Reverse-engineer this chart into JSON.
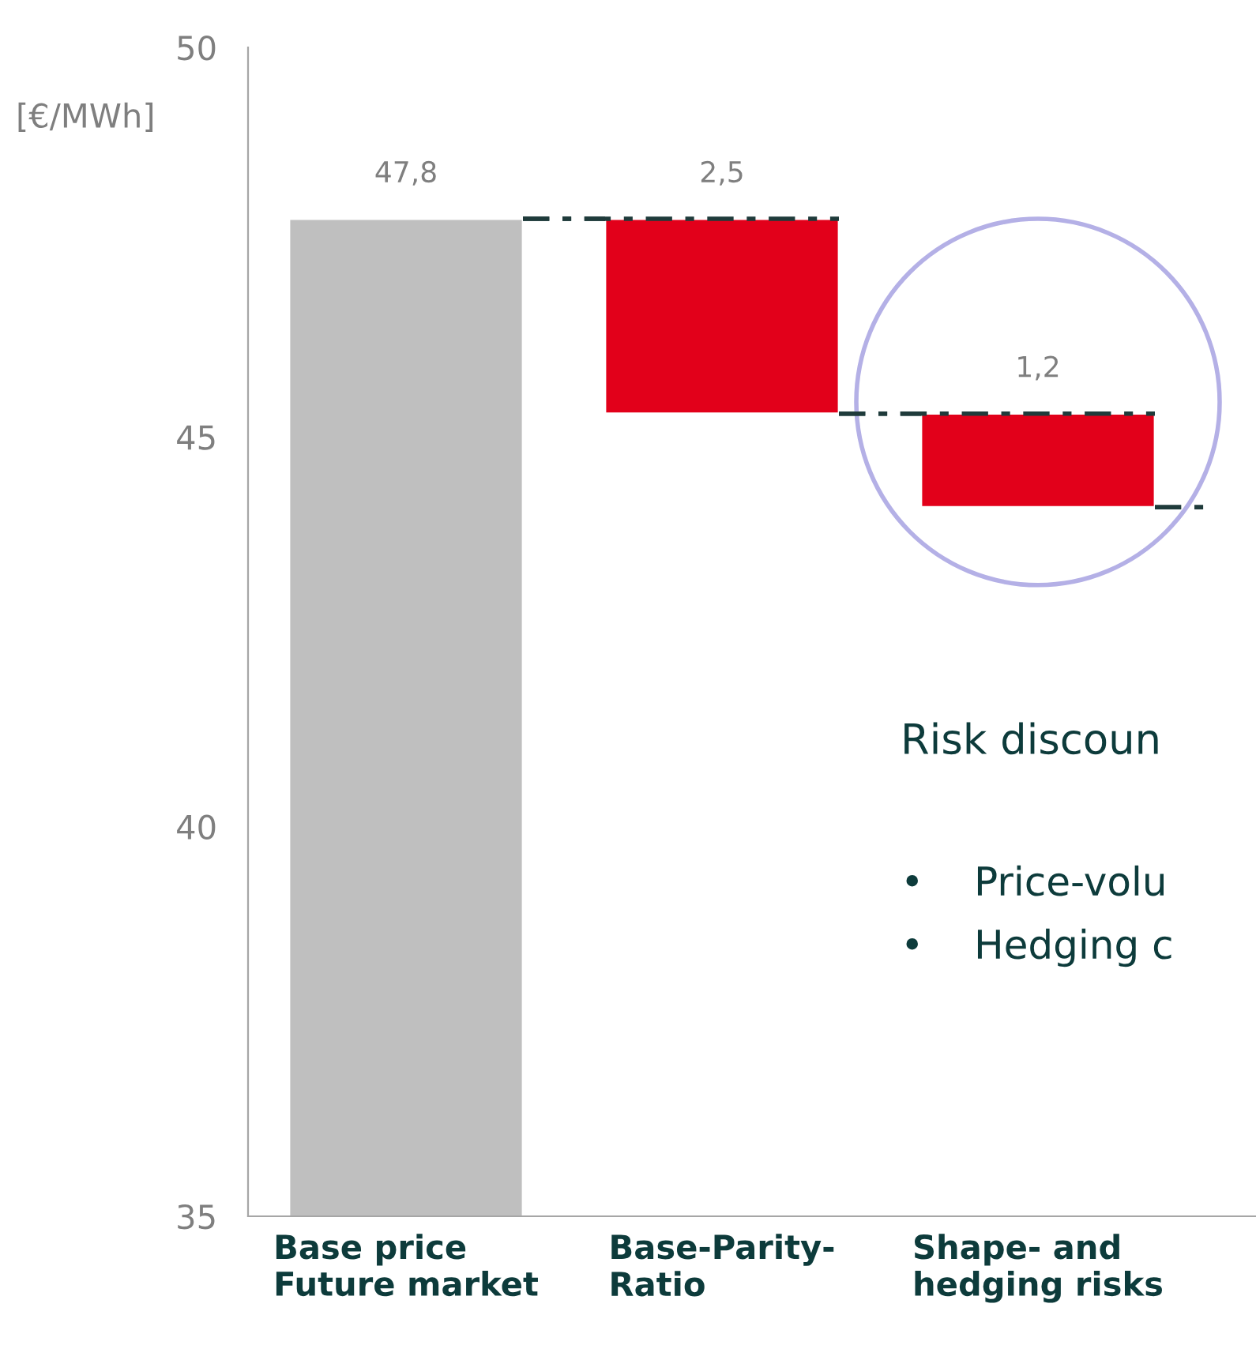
{
  "chart_data": {
    "type": "bar",
    "categories": [
      "Base price\nFuture market",
      "Base-Parity-\nRatio",
      "Shape- and\nhedging risks"
    ],
    "values": [
      47.8,
      2.5,
      1.2
    ],
    "base": [
      null,
      45.3,
      44.1
    ],
    "colors": [
      "#bfbfbf",
      "#e2001a",
      "#e2001a"
    ],
    "value_labels": [
      "47,8",
      "2,5",
      "1,2"
    ],
    "ylabel": "[€/MWh]",
    "ylim": [
      35,
      50
    ],
    "yticks": [
      35,
      40,
      45,
      50
    ],
    "grid": false,
    "legend": false,
    "annotations": [
      "Risk discoun",
      "•    Price-volu",
      "•    Hedging c"
    ]
  }
}
